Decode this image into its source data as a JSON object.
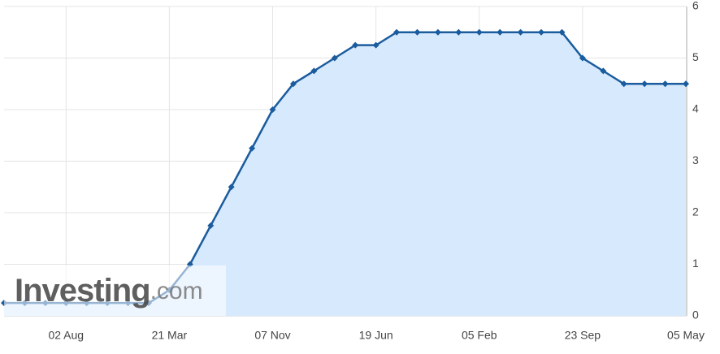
{
  "chart_data": {
    "type": "area",
    "categories": [
      null,
      null,
      null,
      "02 Aug",
      null,
      null,
      null,
      null,
      "21 Mar",
      null,
      null,
      null,
      null,
      "07 Nov",
      null,
      null,
      null,
      null,
      "19 Jun",
      null,
      null,
      null,
      null,
      "05 Feb",
      null,
      null,
      null,
      null,
      "23 Sep",
      null,
      null,
      null,
      null,
      "05 May"
    ],
    "values": [
      0.25,
      0.25,
      0.25,
      0.25,
      0.25,
      0.25,
      0.25,
      0.25,
      0.5,
      1.0,
      1.75,
      2.5,
      3.25,
      4.0,
      4.5,
      4.75,
      5.0,
      5.25,
      5.25,
      5.5,
      5.5,
      5.5,
      5.5,
      5.5,
      5.5,
      5.5,
      5.5,
      5.5,
      5.0,
      4.75,
      4.5,
      4.5,
      4.5,
      4.5
    ],
    "color": "#1a5c9e",
    "fill": "#d7e9fc",
    "ylim": [
      0,
      6
    ],
    "yticks": [
      0,
      1,
      2,
      3,
      4,
      5,
      6
    ],
    "grid": true,
    "watermark": {
      "brand": "Investing",
      "suffix": ".com"
    }
  }
}
